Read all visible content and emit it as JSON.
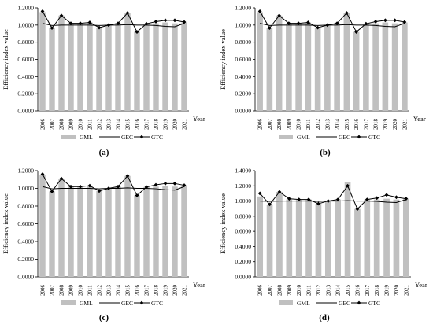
{
  "chart_data": [
    {
      "type": "bar",
      "panel_label": "(a)",
      "ylabel": "Efficiency index value",
      "xlabel": "Year",
      "ylim": [
        0,
        1.2
      ],
      "yticks": [
        "0.0000",
        "0.2000",
        "0.4000",
        "0.6000",
        "0.8000",
        "1.0000",
        "1.2000"
      ],
      "categories": [
        "2006",
        "2007",
        "2008",
        "2009",
        "2010",
        "2011",
        "2012",
        "2013",
        "2014",
        "2015",
        "2016",
        "2017",
        "2018",
        "2019",
        "2020",
        "2021"
      ],
      "legend_position": "bottom",
      "series": [
        {
          "name": "GML",
          "kind": "bar",
          "color": "#c0c0c0",
          "values": [
            1.15,
            0.965,
            1.11,
            1.02,
            1.02,
            1.03,
            0.97,
            1.0,
            1.02,
            1.14,
            0.92,
            1.015,
            1.02,
            1.03,
            1.02,
            1.03
          ]
        },
        {
          "name": "GEC",
          "kind": "line",
          "color": "#000000",
          "values": [
            1.02,
            0.995,
            1.0,
            1.0,
            1.0,
            1.0,
            0.995,
            1.0,
            1.0,
            1.005,
            1.0,
            1.0,
            0.995,
            0.985,
            0.98,
            1.02
          ]
        },
        {
          "name": "GTC",
          "kind": "line-marker",
          "color": "#000000",
          "values": [
            1.16,
            0.965,
            1.11,
            1.02,
            1.02,
            1.03,
            0.97,
            1.0,
            1.02,
            1.14,
            0.92,
            1.015,
            1.04,
            1.055,
            1.055,
            1.035
          ]
        }
      ]
    },
    {
      "type": "bar",
      "panel_label": "(b)",
      "ylabel": "Efficiency index value",
      "xlabel": "Year",
      "ylim": [
        0,
        1.2
      ],
      "yticks": [
        "0.0000",
        "0.2000",
        "0.4000",
        "0.6000",
        "0.8000",
        "1.0000",
        "1.2000"
      ],
      "categories": [
        "2006",
        "2007",
        "2008",
        "2009",
        "2010",
        "2011",
        "2012",
        "2013",
        "2014",
        "2015",
        "2016",
        "2017",
        "2018",
        "2019",
        "2020",
        "2021"
      ],
      "legend_position": "bottom",
      "series": [
        {
          "name": "GML",
          "kind": "bar",
          "color": "#c0c0c0",
          "values": [
            1.15,
            0.965,
            1.11,
            1.02,
            1.02,
            1.03,
            0.97,
            1.0,
            1.02,
            1.14,
            0.92,
            1.015,
            1.02,
            1.03,
            1.02,
            1.03
          ]
        },
        {
          "name": "GEC",
          "kind": "line",
          "color": "#000000",
          "values": [
            1.02,
            0.995,
            1.0,
            1.0,
            1.0,
            1.0,
            0.995,
            1.0,
            1.0,
            1.005,
            1.0,
            1.0,
            0.995,
            0.985,
            0.98,
            1.02
          ]
        },
        {
          "name": "GTC",
          "kind": "line-marker",
          "color": "#000000",
          "values": [
            1.16,
            0.965,
            1.11,
            1.02,
            1.02,
            1.03,
            0.97,
            1.0,
            1.02,
            1.14,
            0.92,
            1.015,
            1.04,
            1.055,
            1.055,
            1.035
          ]
        }
      ]
    },
    {
      "type": "bar",
      "panel_label": "(c)",
      "ylabel": "Efficiency index value",
      "xlabel": "Year",
      "ylim": [
        0,
        1.2
      ],
      "yticks": [
        "0.0000",
        "0.2000",
        "0.4000",
        "0.6000",
        "0.8000",
        "1.0000",
        "1.2000"
      ],
      "categories": [
        "2006",
        "2007",
        "2008",
        "2009",
        "2010",
        "2011",
        "2012",
        "2013",
        "2014",
        "2015",
        "2016",
        "2017",
        "2018",
        "2019",
        "2020",
        "2021"
      ],
      "legend_position": "bottom",
      "series": [
        {
          "name": "GML",
          "kind": "bar",
          "color": "#c0c0c0",
          "values": [
            1.15,
            0.965,
            1.11,
            1.02,
            1.02,
            1.03,
            0.97,
            1.0,
            1.02,
            1.14,
            0.92,
            1.015,
            1.02,
            1.03,
            1.02,
            1.03
          ]
        },
        {
          "name": "GEC",
          "kind": "line",
          "color": "#000000",
          "values": [
            1.02,
            0.995,
            1.0,
            1.0,
            1.0,
            1.0,
            0.995,
            1.0,
            1.0,
            1.005,
            1.0,
            1.0,
            0.995,
            0.985,
            0.98,
            1.02
          ]
        },
        {
          "name": "GTC",
          "kind": "line-marker",
          "color": "#000000",
          "values": [
            1.16,
            0.965,
            1.11,
            1.02,
            1.02,
            1.03,
            0.97,
            1.0,
            1.02,
            1.14,
            0.92,
            1.015,
            1.04,
            1.055,
            1.055,
            1.035
          ]
        }
      ]
    },
    {
      "type": "bar",
      "panel_label": "(d)",
      "ylabel": "Efficiency index value",
      "xlabel": "Year",
      "ylim": [
        0,
        1.4
      ],
      "yticks": [
        "0.0000",
        "0.2000",
        "0.4000",
        "0.6000",
        "0.8000",
        "1.0000",
        "1.2000",
        "1.4000"
      ],
      "categories": [
        "2006",
        "2007",
        "2008",
        "2009",
        "2010",
        "2011",
        "2012",
        "2013",
        "2014",
        "2015",
        "2016",
        "2017",
        "2018",
        "2019",
        "2020",
        "2021"
      ],
      "legend_position": "bottom",
      "series": [
        {
          "name": "GML",
          "kind": "bar",
          "color": "#c0c0c0",
          "values": [
            1.06,
            0.955,
            1.12,
            1.02,
            1.02,
            1.02,
            0.965,
            1.0,
            1.02,
            1.25,
            0.895,
            1.02,
            1.02,
            1.03,
            1.02,
            1.03
          ]
        },
        {
          "name": "GEC",
          "kind": "line",
          "color": "#000000",
          "values": [
            1.0,
            0.995,
            1.0,
            1.0,
            1.0,
            1.0,
            0.995,
            1.0,
            1.0,
            1.005,
            1.0,
            1.0,
            0.995,
            0.985,
            0.98,
            1.02
          ]
        },
        {
          "name": "GTC",
          "kind": "line-marker",
          "color": "#000000",
          "values": [
            1.1,
            0.955,
            1.12,
            1.03,
            1.02,
            1.02,
            0.965,
            1.0,
            1.02,
            1.2,
            0.895,
            1.02,
            1.04,
            1.08,
            1.05,
            1.03
          ]
        }
      ]
    }
  ]
}
